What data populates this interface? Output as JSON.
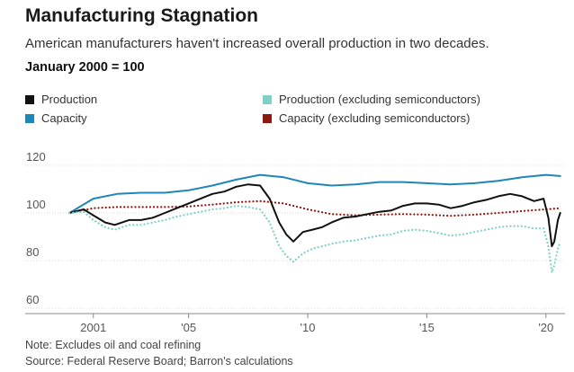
{
  "header": {
    "title": "Manufacturing Stagnation",
    "subtitle": "American manufacturers haven't increased overall production in two decades.",
    "units": "January 2000 = 100"
  },
  "legend": [
    {
      "label": "Production",
      "color": "#111111"
    },
    {
      "label": "Production (excluding semiconductors)",
      "color": "#7fd0c8"
    },
    {
      "label": "Capacity",
      "color": "#1f86b8"
    },
    {
      "label": "Capacity (excluding semiconductors)",
      "color": "#8b1a10"
    }
  ],
  "footer": {
    "note": "Note: Excludes oil and coal refining",
    "source": "Source: Federal Reserve Board; Barron's calculations"
  },
  "chart_data": {
    "type": "line",
    "ylim": [
      60,
      120
    ],
    "xlim": [
      1999.5,
      2020.8
    ],
    "yticks": [
      60,
      80,
      100,
      120
    ],
    "xticks": [
      {
        "value": 2001,
        "label": "2001"
      },
      {
        "value": 2005,
        "label": "'05"
      },
      {
        "value": 2010,
        "label": "'10"
      },
      {
        "value": 2015,
        "label": "'15"
      },
      {
        "value": 2020,
        "label": "'20"
      }
    ],
    "grid": true,
    "series": [
      {
        "name": "Capacity",
        "color": "#1f86b8",
        "style": "solid",
        "x": [
          2000.0,
          2001.0,
          2002.0,
          2003.0,
          2004.0,
          2005.0,
          2006.0,
          2007.0,
          2008.0,
          2009.0,
          2010.0,
          2011.0,
          2012.0,
          2013.0,
          2014.0,
          2015.0,
          2016.0,
          2017.0,
          2018.0,
          2019.0,
          2020.0,
          2020.6
        ],
        "values": [
          100,
          106,
          108,
          108.5,
          108.5,
          109.5,
          111.5,
          114,
          116,
          115,
          112.5,
          111.5,
          112,
          113,
          113,
          112.5,
          112,
          112.5,
          113.5,
          115,
          116,
          115.5
        ]
      },
      {
        "name": "Capacity (excluding semiconductors)",
        "color": "#8b1a10",
        "style": "dotted",
        "x": [
          2000.0,
          2001.0,
          2002.0,
          2003.0,
          2004.0,
          2005.0,
          2006.0,
          2007.0,
          2008.0,
          2009.0,
          2010.0,
          2011.0,
          2012.0,
          2013.0,
          2014.0,
          2015.0,
          2016.0,
          2017.0,
          2018.0,
          2019.0,
          2020.0,
          2020.6
        ],
        "values": [
          100,
          102,
          102.5,
          102.5,
          102.5,
          102.7,
          103.5,
          104.5,
          105,
          104,
          101.5,
          99.5,
          99,
          99.3,
          99.5,
          99.3,
          98.8,
          99.3,
          100,
          100.8,
          101.5,
          102
        ]
      },
      {
        "name": "Production",
        "color": "#111111",
        "style": "solid",
        "x": [
          2000.0,
          2000.6,
          2001.0,
          2001.5,
          2001.9,
          2002.5,
          2003.0,
          2003.5,
          2004.0,
          2004.5,
          2005.0,
          2005.5,
          2006.0,
          2006.5,
          2007.0,
          2007.5,
          2008.0,
          2008.4,
          2008.8,
          2009.1,
          2009.4,
          2009.8,
          2010.2,
          2010.6,
          2011.0,
          2011.5,
          2012.0,
          2012.5,
          2013.0,
          2013.5,
          2014.0,
          2014.5,
          2015.0,
          2015.5,
          2016.0,
          2016.5,
          2017.0,
          2017.5,
          2018.0,
          2018.5,
          2019.0,
          2019.5,
          2019.9,
          2020.1,
          2020.25,
          2020.35,
          2020.5,
          2020.6
        ],
        "values": [
          100,
          101.5,
          99,
          96,
          95,
          97,
          97,
          98,
          100,
          102,
          104,
          106,
          108,
          109,
          111,
          112,
          111.5,
          106,
          96,
          91,
          88,
          92,
          93,
          94,
          96,
          98,
          98.5,
          99.5,
          100.5,
          101,
          103,
          104,
          104,
          103.5,
          102,
          103,
          104.5,
          105.5,
          107,
          108,
          107,
          105,
          106,
          98,
          86,
          88,
          97,
          100
        ]
      },
      {
        "name": "Production (excluding semiconductors)",
        "color": "#7fd0c8",
        "style": "dotted",
        "x": [
          2000.0,
          2000.6,
          2001.0,
          2001.5,
          2001.9,
          2002.5,
          2003.0,
          2003.5,
          2004.0,
          2004.5,
          2005.0,
          2005.5,
          2006.0,
          2006.5,
          2007.0,
          2007.5,
          2008.0,
          2008.4,
          2008.8,
          2009.1,
          2009.4,
          2009.8,
          2010.2,
          2010.6,
          2011.0,
          2011.5,
          2012.0,
          2012.5,
          2013.0,
          2013.5,
          2014.0,
          2014.5,
          2015.0,
          2015.5,
          2016.0,
          2016.5,
          2017.0,
          2017.5,
          2018.0,
          2018.5,
          2019.0,
          2019.5,
          2019.9,
          2020.1,
          2020.25,
          2020.35,
          2020.5,
          2020.6
        ],
        "values": [
          100,
          100.5,
          97,
          94,
          93,
          95,
          95,
          96,
          97,
          98.5,
          99.5,
          100.5,
          101.5,
          102,
          103,
          102.5,
          101.5,
          96,
          86,
          82,
          79.5,
          83,
          85,
          86,
          87,
          88,
          88.5,
          89.5,
          90.5,
          91,
          92.5,
          93,
          92.5,
          91.5,
          90.5,
          91,
          92,
          93,
          94,
          94.5,
          94.5,
          93.5,
          93.5,
          86,
          75,
          78,
          85,
          88
        ]
      }
    ]
  }
}
